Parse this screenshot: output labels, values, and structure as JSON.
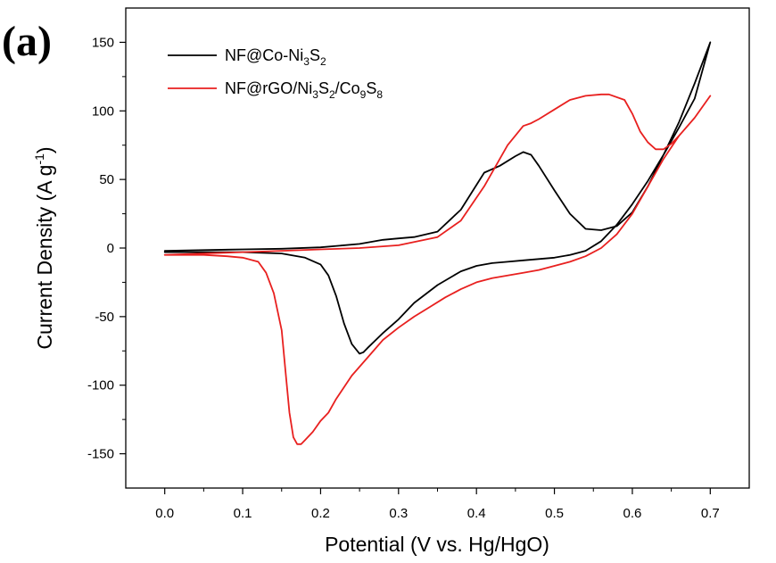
{
  "chart_data": {
    "type": "line",
    "panel_label": "(a)",
    "xlabel": "Potential (V vs. Hg/HgO)",
    "ylabel": {
      "main": "Current Density (A g",
      "sup": "-1",
      "close": ")"
    },
    "xlim": [
      -0.05,
      0.75
    ],
    "ylim": [
      -175,
      175
    ],
    "xticks": [
      0.0,
      0.1,
      0.2,
      0.3,
      0.4,
      0.5,
      0.6,
      0.7
    ],
    "xtick_labels": [
      "0.0",
      "0.1",
      "0.2",
      "0.3",
      "0.4",
      "0.5",
      "0.6",
      "0.7"
    ],
    "yticks": [
      -150,
      -100,
      -50,
      0,
      50,
      100,
      150
    ],
    "ytick_labels": [
      "-150",
      "-100",
      "-50",
      "0",
      "50",
      "100",
      "150"
    ],
    "grid": false,
    "legend_position": "top-left",
    "series": [
      {
        "name": "NF@Co-Ni3S2",
        "legend": [
          {
            "t": "NF@Co-Ni",
            "s": ""
          },
          {
            "t": "3",
            "s": "sub"
          },
          {
            "t": "S",
            "s": ""
          },
          {
            "t": "2",
            "s": "sub"
          }
        ],
        "color": "#000000",
        "x": [
          0.0,
          0.05,
          0.1,
          0.15,
          0.2,
          0.25,
          0.28,
          0.3,
          0.32,
          0.35,
          0.38,
          0.41,
          0.43,
          0.45,
          0.46,
          0.47,
          0.48,
          0.5,
          0.52,
          0.54,
          0.56,
          0.58,
          0.6,
          0.62,
          0.64,
          0.66,
          0.68,
          0.7,
          0.68,
          0.66,
          0.64,
          0.62,
          0.6,
          0.58,
          0.56,
          0.54,
          0.52,
          0.5,
          0.48,
          0.46,
          0.44,
          0.42,
          0.4,
          0.38,
          0.35,
          0.32,
          0.3,
          0.28,
          0.26,
          0.255,
          0.25,
          0.24,
          0.23,
          0.22,
          0.21,
          0.2,
          0.18,
          0.15,
          0.1,
          0.05,
          0.0
        ],
        "y": [
          -2,
          -1.5,
          -1,
          -0.5,
          0.5,
          3,
          6,
          7,
          8,
          12,
          28,
          55,
          60,
          67,
          70,
          68,
          60,
          42,
          25,
          14,
          13,
          16,
          26,
          45,
          68,
          92,
          120,
          150,
          109,
          88,
          68,
          49,
          32,
          17,
          5,
          -2,
          -5,
          -7,
          -8,
          -9,
          -10,
          -11,
          -13,
          -17,
          -27,
          -40,
          -52,
          -62,
          -73,
          -76,
          -77,
          -70,
          -55,
          -35,
          -20,
          -12,
          -7,
          -4,
          -3,
          -3,
          -3
        ]
      },
      {
        "name": "NF@rGO/Ni3S2/Co9S8",
        "legend": [
          {
            "t": "NF@rGO/Ni",
            "s": ""
          },
          {
            "t": "3",
            "s": "sub"
          },
          {
            "t": "S",
            "s": ""
          },
          {
            "t": "2",
            "s": "sub"
          },
          {
            "t": "/Co",
            "s": ""
          },
          {
            "t": "9",
            "s": "sub"
          },
          {
            "t": "S",
            "s": ""
          },
          {
            "t": "8",
            "s": "sub"
          }
        ],
        "color": "#e8201f",
        "x": [
          0.0,
          0.05,
          0.1,
          0.15,
          0.2,
          0.25,
          0.3,
          0.35,
          0.38,
          0.41,
          0.44,
          0.46,
          0.47,
          0.48,
          0.5,
          0.52,
          0.54,
          0.56,
          0.57,
          0.59,
          0.6,
          0.61,
          0.62,
          0.63,
          0.64,
          0.65,
          0.66,
          0.68,
          0.7,
          0.68,
          0.66,
          0.64,
          0.62,
          0.6,
          0.58,
          0.56,
          0.54,
          0.52,
          0.5,
          0.48,
          0.46,
          0.44,
          0.42,
          0.4,
          0.38,
          0.36,
          0.34,
          0.32,
          0.3,
          0.28,
          0.26,
          0.24,
          0.22,
          0.21,
          0.2,
          0.19,
          0.18,
          0.175,
          0.17,
          0.165,
          0.16,
          0.155,
          0.15,
          0.14,
          0.13,
          0.12,
          0.1,
          0.08,
          0.05,
          0.0
        ],
        "y": [
          -5,
          -4,
          -3,
          -2,
          -1,
          0,
          2,
          8,
          20,
          45,
          75,
          89,
          91,
          94,
          101,
          108,
          111,
          112,
          112,
          108,
          98,
          85,
          77,
          72,
          72,
          76,
          82,
          95,
          111,
          95,
          82,
          65,
          45,
          25,
          10,
          0,
          -6,
          -10,
          -13,
          -16,
          -18,
          -20,
          -22,
          -25,
          -30,
          -36,
          -43,
          -50,
          -58,
          -67,
          -80,
          -93,
          -110,
          -120,
          -126,
          -134,
          -140,
          -143,
          -143,
          -138,
          -120,
          -90,
          -60,
          -33,
          -18,
          -10,
          -7,
          -6,
          -5,
          -5
        ]
      }
    ]
  }
}
